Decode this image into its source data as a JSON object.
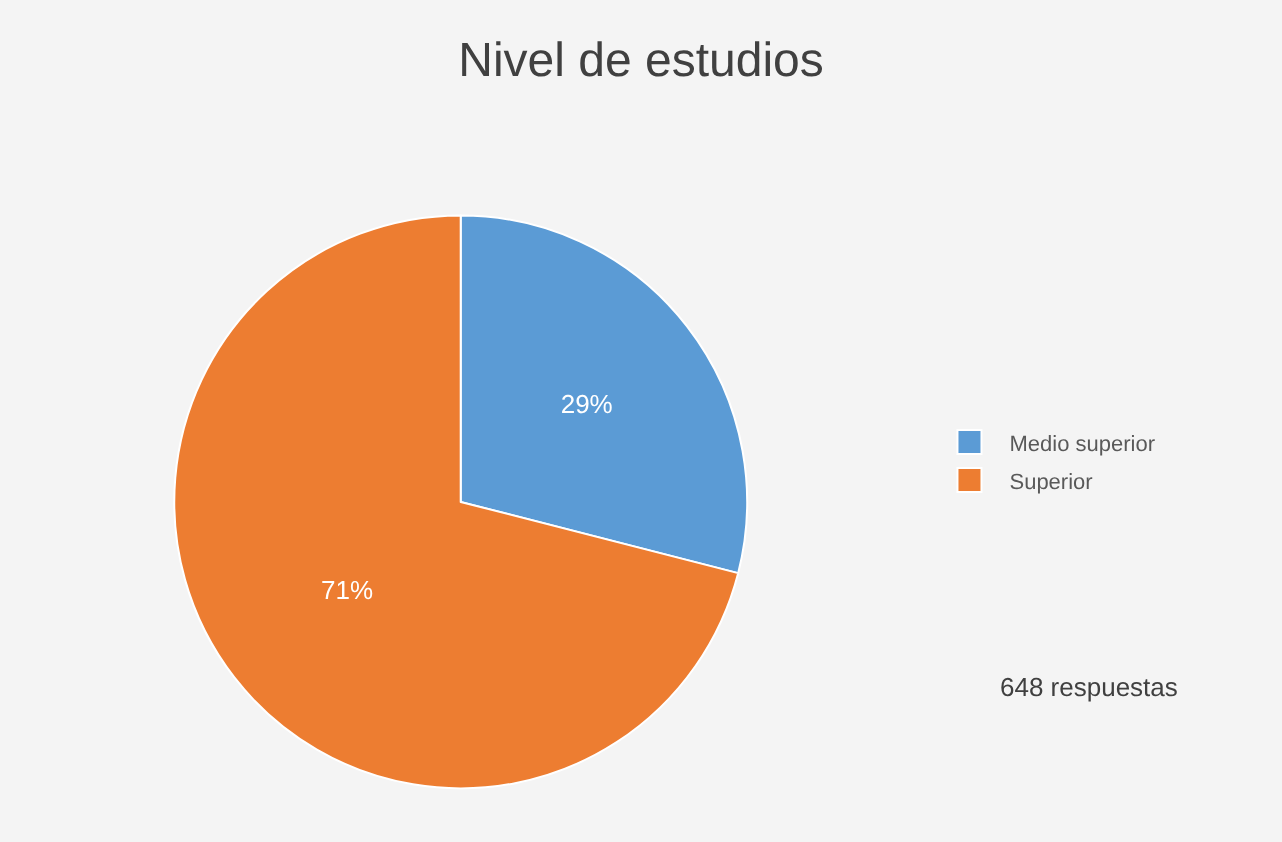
{
  "chart_data": {
    "type": "pie",
    "title": "Nivel de estudios",
    "categories": [
      "Medio superior",
      "Superior"
    ],
    "values": [
      29,
      71
    ],
    "colors": [
      "#5b9bd5",
      "#ed7d31"
    ],
    "value_labels": [
      "29%",
      "71%"
    ],
    "legend": "right",
    "annotations": [
      "648 respuestas"
    ]
  }
}
